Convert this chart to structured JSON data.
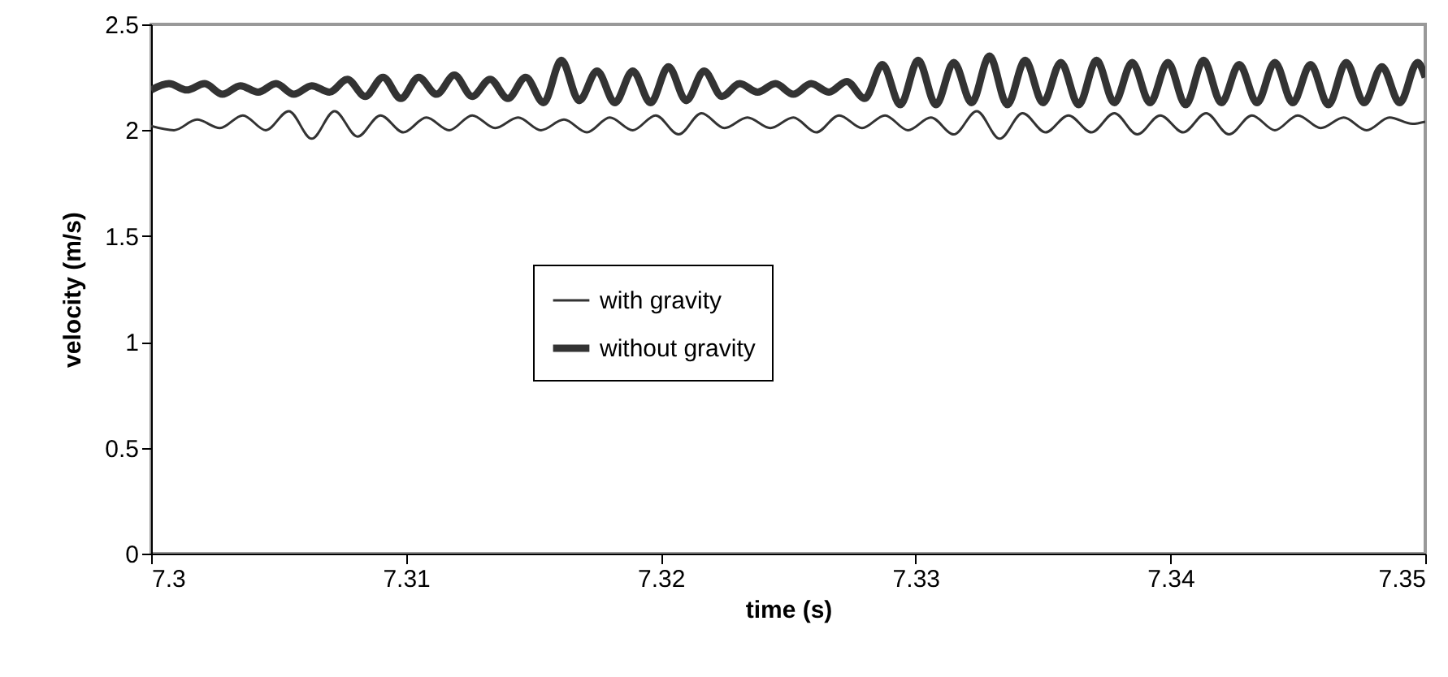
{
  "chart_data": {
    "type": "line",
    "xlabel": "time (s)",
    "ylabel": "velocity (m/s)",
    "xlim": [
      7.3,
      7.35
    ],
    "xticks": [
      7.3,
      7.31,
      7.32,
      7.33,
      7.34,
      7.35
    ],
    "ylim": [
      0,
      2.5
    ],
    "yticks": [
      0,
      0.5,
      1,
      1.5,
      2,
      2.5
    ],
    "grid": false,
    "legend": "center",
    "marker": "none",
    "line_style": "solid",
    "series": [
      {
        "name": "with gravity",
        "color": "#333333",
        "x": [
          7.3,
          7.3009,
          7.3018,
          7.3027,
          7.3036,
          7.3045,
          7.3054,
          7.3063,
          7.3072,
          7.3081,
          7.309,
          7.3099,
          7.3108,
          7.3117,
          7.3126,
          7.3135,
          7.3144,
          7.3153,
          7.3162,
          7.3171,
          7.318,
          7.3189,
          7.3198,
          7.3207,
          7.3216,
          7.3225,
          7.3234,
          7.3243,
          7.3252,
          7.3261,
          7.327,
          7.3279,
          7.3288,
          7.3297,
          7.3306,
          7.3315,
          7.3324,
          7.3333,
          7.3342,
          7.3351,
          7.336,
          7.3369,
          7.3378,
          7.3387,
          7.3396,
          7.3405,
          7.3414,
          7.3423,
          7.3432,
          7.3441,
          7.345,
          7.3459,
          7.3468,
          7.3477,
          7.3486,
          7.3495,
          7.35
        ],
        "values": [
          2.02,
          2.0,
          2.05,
          2.01,
          2.07,
          2.0,
          2.09,
          1.96,
          2.09,
          1.97,
          2.07,
          1.99,
          2.06,
          2.0,
          2.07,
          2.01,
          2.06,
          2.0,
          2.05,
          1.99,
          2.06,
          2.0,
          2.07,
          1.98,
          2.08,
          2.01,
          2.06,
          2.01,
          2.06,
          1.99,
          2.07,
          2.01,
          2.07,
          2.0,
          2.06,
          1.98,
          2.09,
          1.96,
          2.08,
          1.99,
          2.07,
          1.99,
          2.08,
          1.98,
          2.07,
          1.99,
          2.08,
          1.98,
          2.07,
          2.0,
          2.07,
          2.01,
          2.06,
          2.0,
          2.06,
          2.03,
          2.04
        ]
      },
      {
        "name": "without gravity",
        "color": "#333333",
        "x": [
          7.3,
          7.3007,
          7.3014,
          7.3021,
          7.3028,
          7.3035,
          7.3042,
          7.3049,
          7.3056,
          7.3063,
          7.307,
          7.3077,
          7.3084,
          7.3091,
          7.3098,
          7.3105,
          7.3112,
          7.3119,
          7.3126,
          7.3133,
          7.314,
          7.3147,
          7.3154,
          7.3161,
          7.3168,
          7.3175,
          7.3182,
          7.3189,
          7.3196,
          7.3203,
          7.321,
          7.3217,
          7.3224,
          7.3231,
          7.3238,
          7.3245,
          7.3252,
          7.3259,
          7.3266,
          7.3273,
          7.328,
          7.3287,
          7.3294,
          7.3301,
          7.3308,
          7.3315,
          7.3322,
          7.3329,
          7.3336,
          7.3343,
          7.335,
          7.3357,
          7.3364,
          7.3371,
          7.3378,
          7.3385,
          7.3392,
          7.3399,
          7.3406,
          7.3413,
          7.342,
          7.3427,
          7.3434,
          7.3441,
          7.3448,
          7.3455,
          7.3462,
          7.3469,
          7.3476,
          7.3483,
          7.349,
          7.3497,
          7.35
        ],
        "values": [
          2.19,
          2.22,
          2.19,
          2.22,
          2.17,
          2.21,
          2.18,
          2.22,
          2.17,
          2.21,
          2.18,
          2.24,
          2.16,
          2.25,
          2.15,
          2.25,
          2.17,
          2.26,
          2.16,
          2.24,
          2.15,
          2.25,
          2.13,
          2.33,
          2.14,
          2.28,
          2.13,
          2.28,
          2.13,
          2.3,
          2.14,
          2.28,
          2.16,
          2.22,
          2.18,
          2.22,
          2.17,
          2.22,
          2.18,
          2.23,
          2.15,
          2.31,
          2.12,
          2.33,
          2.12,
          2.32,
          2.13,
          2.35,
          2.12,
          2.33,
          2.13,
          2.32,
          2.12,
          2.33,
          2.13,
          2.32,
          2.13,
          2.32,
          2.12,
          2.33,
          2.13,
          2.31,
          2.13,
          2.32,
          2.13,
          2.31,
          2.12,
          2.32,
          2.13,
          2.3,
          2.13,
          2.32,
          2.25
        ]
      }
    ]
  }
}
